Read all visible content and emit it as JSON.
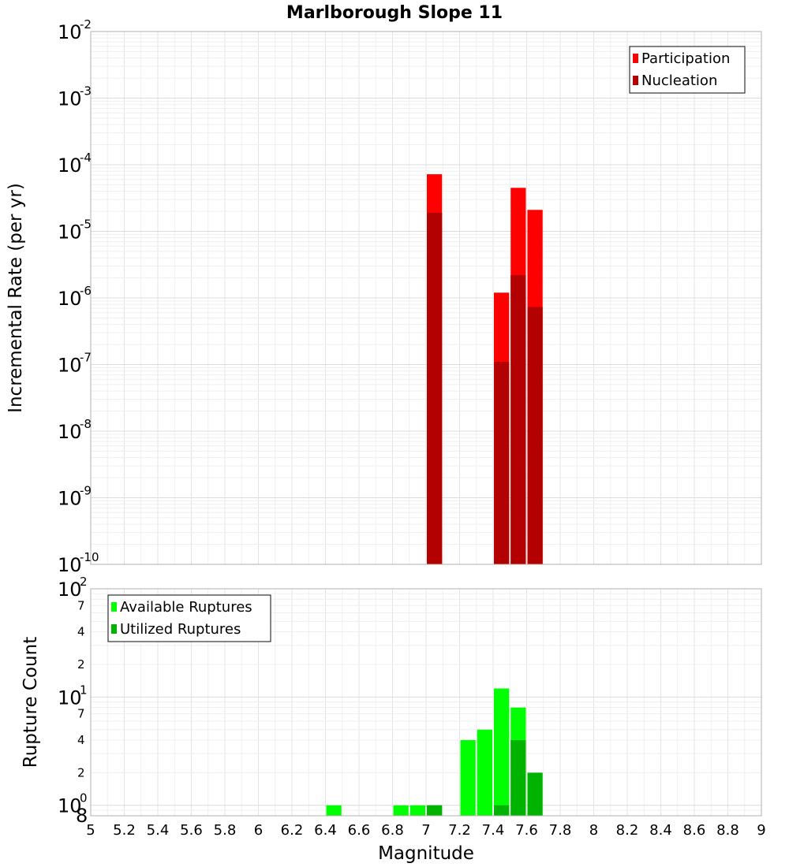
{
  "chart_data": [
    {
      "type": "bar",
      "title": "Marlborough Slope 11",
      "xlabel": "",
      "ylabel": "Incremental Rate (per yr)",
      "yscale": "log",
      "ylim": [
        1e-10,
        0.01
      ],
      "xlim": [
        5,
        9
      ],
      "bin_width": 0.1,
      "y_ticks": [
        {
          "base": "10",
          "exp": "-10",
          "value": 1e-10
        },
        {
          "base": "10",
          "exp": "-9",
          "value": 1e-09
        },
        {
          "base": "10",
          "exp": "-8",
          "value": 1e-08
        },
        {
          "base": "10",
          "exp": "-7",
          "value": 1e-07
        },
        {
          "base": "10",
          "exp": "-6",
          "value": 1e-06
        },
        {
          "base": "10",
          "exp": "-5",
          "value": 1e-05
        },
        {
          "base": "10",
          "exp": "-4",
          "value": 0.0001
        },
        {
          "base": "10",
          "exp": "-3",
          "value": 0.001
        },
        {
          "base": "10",
          "exp": "-2",
          "value": 0.01
        }
      ],
      "legend": {
        "position": "top-right",
        "entries": [
          "Participation",
          "Nucleation"
        ]
      },
      "series": [
        {
          "name": "Participation",
          "color": "#ff0000",
          "x": [
            7.05,
            7.45,
            7.55,
            7.65
          ],
          "values": [
            7.2e-05,
            1.2e-06,
            4.5e-05,
            2.1e-05
          ]
        },
        {
          "name": "Nucleation",
          "color": "#b30000",
          "x": [
            7.05,
            7.45,
            7.55,
            7.65
          ],
          "values": [
            1.9e-05,
            1.1e-07,
            2.2e-06,
            7.3e-07
          ]
        }
      ]
    },
    {
      "type": "bar",
      "title": "",
      "xlabel": "Magnitude",
      "ylabel": "Rupture Count",
      "yscale": "log",
      "ylim": [
        0.8,
        100
      ],
      "xlim": [
        5,
        9
      ],
      "bin_width": 0.1,
      "x_ticks": [
        "5",
        "5.2",
        "5.4",
        "5.6",
        "5.8",
        "6",
        "6.2",
        "6.4",
        "6.6",
        "6.8",
        "7",
        "7.2",
        "7.4",
        "7.6",
        "7.8",
        "8",
        "8.2",
        "8.4",
        "8.6",
        "8.8",
        "9"
      ],
      "y_major_ticks": [
        {
          "base": "10",
          "exp": "0",
          "value": 1
        },
        {
          "base": "10",
          "exp": "1",
          "value": 10
        },
        {
          "base": "10",
          "exp": "2",
          "value": 100
        }
      ],
      "y_minor_ticks": [
        {
          "label": "8",
          "value": 0.8
        },
        {
          "label": "2",
          "value": 2
        },
        {
          "label": "4",
          "value": 4
        },
        {
          "label": "7",
          "value": 7
        },
        {
          "label": "2",
          "value": 20
        },
        {
          "label": "4",
          "value": 40
        },
        {
          "label": "7",
          "value": 70
        }
      ],
      "legend": {
        "position": "top-left",
        "entries": [
          "Available Ruptures",
          "Utilized Ruptures"
        ]
      },
      "series": [
        {
          "name": "Available Ruptures",
          "color": "#00ff00",
          "x": [
            6.45,
            6.85,
            6.95,
            7.05,
            7.25,
            7.35,
            7.45,
            7.55
          ],
          "values": [
            1,
            1,
            1,
            1,
            4,
            5,
            12,
            8
          ]
        },
        {
          "name": "Utilized Ruptures",
          "color": "#00b300",
          "x": [
            7.05,
            7.45,
            7.55,
            7.65
          ],
          "values": [
            1,
            1,
            4,
            2
          ]
        }
      ]
    }
  ]
}
